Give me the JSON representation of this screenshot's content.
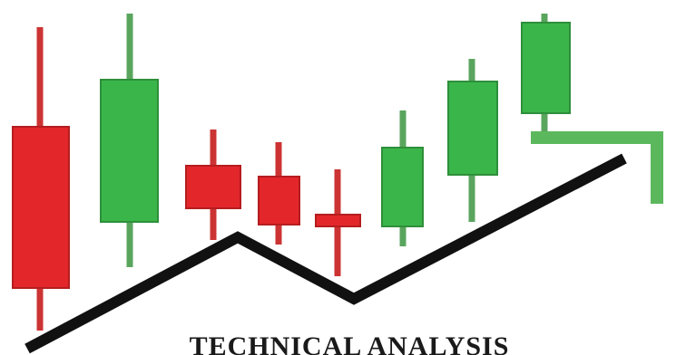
{
  "logo": {
    "caption": "TECHNICAL ANALYSIS"
  }
}
